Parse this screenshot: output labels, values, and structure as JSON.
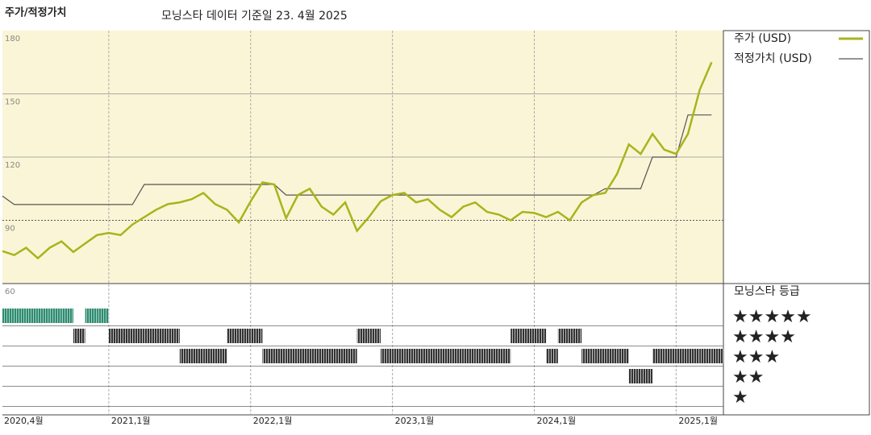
{
  "chart_data": [
    {
      "type": "line",
      "title": "주가/적정가치",
      "subtitle": "모닝스타 데이터 기준일 23. 4월 2025",
      "x": [
        "2020-04",
        "2020-05",
        "2020-06",
        "2020-07",
        "2020-08",
        "2020-09",
        "2020-10",
        "2020-11",
        "2020-12",
        "2021-01",
        "2021-02",
        "2021-03",
        "2021-04",
        "2021-05",
        "2021-06",
        "2021-07",
        "2021-08",
        "2021-09",
        "2021-10",
        "2021-11",
        "2021-12",
        "2022-01",
        "2022-02",
        "2022-03",
        "2022-04",
        "2022-05",
        "2022-06",
        "2022-07",
        "2022-08",
        "2022-09",
        "2022-10",
        "2022-11",
        "2022-12",
        "2023-01",
        "2023-02",
        "2023-03",
        "2023-04",
        "2023-05",
        "2023-06",
        "2023-07",
        "2023-08",
        "2023-09",
        "2023-10",
        "2023-11",
        "2023-12",
        "2024-01",
        "2024-02",
        "2024-03",
        "2024-04",
        "2024-05",
        "2024-06",
        "2024-07",
        "2024-08",
        "2024-09",
        "2024-10",
        "2024-11",
        "2024-12",
        "2025-01",
        "2025-02",
        "2025-03",
        "2025-04"
      ],
      "series": [
        {
          "name": "주가 (USD)",
          "color": "#a8b41c",
          "values": [
            75.4,
            73.5,
            77,
            72,
            77,
            80,
            75,
            79,
            83,
            84,
            83,
            88,
            91.5,
            95,
            97.7,
            98.5,
            100,
            103,
            97.7,
            95,
            89,
            99,
            108,
            107,
            91,
            102,
            105,
            96.5,
            92.7,
            98.5,
            85,
            91.5,
            99,
            102,
            103,
            98.5,
            100,
            95,
            91.5,
            96.5,
            98.5,
            94,
            92.7,
            90,
            94,
            93.5,
            91.5,
            94,
            90,
            98.5,
            102,
            103,
            112,
            126,
            121.5,
            131,
            123.5,
            121.5,
            131,
            152,
            165
          ]
        },
        {
          "name": "적정가치 (USD)",
          "color": "#555555",
          "values": [
            101.5,
            97.5,
            97.5,
            97.5,
            97.5,
            97.5,
            97.5,
            97.5,
            97.5,
            97.5,
            97.5,
            97.5,
            107,
            107,
            107,
            107,
            107,
            107,
            107,
            107,
            107,
            107,
            107,
            107,
            102,
            102,
            102,
            102,
            102,
            102,
            102,
            102,
            102,
            102,
            102,
            102,
            102,
            102,
            102,
            102,
            102,
            102,
            102,
            102,
            102,
            102,
            102,
            102,
            102,
            102,
            102,
            105,
            105,
            105,
            105,
            120,
            120,
            120,
            140,
            140,
            140
          ]
        }
      ],
      "xlim": [
        "2020-04",
        "2025-05"
      ],
      "xticks": [
        {
          "value": "2020-04",
          "label": "2020,4월"
        },
        {
          "value": "2021-01",
          "label": "2021,1월"
        },
        {
          "value": "2022-01",
          "label": "2022,1월"
        },
        {
          "value": "2023-01",
          "label": "2023,1월"
        },
        {
          "value": "2024-01",
          "label": "2024,1월"
        },
        {
          "value": "2025-01",
          "label": "2025,1월"
        }
      ],
      "ylim": [
        60,
        180
      ],
      "yticks": [
        60,
        90,
        120,
        150,
        180
      ],
      "grid": true,
      "background": "#faf5d6"
    },
    {
      "type": "rating",
      "title": "모닝스타 등급",
      "x": [
        "2020-04",
        "2020-05",
        "2020-06",
        "2020-07",
        "2020-08",
        "2020-09",
        "2020-10",
        "2020-11",
        "2020-12",
        "2021-01",
        "2021-02",
        "2021-03",
        "2021-04",
        "2021-05",
        "2021-06",
        "2021-07",
        "2021-08",
        "2021-09",
        "2021-10",
        "2021-11",
        "2021-12",
        "2022-01",
        "2022-02",
        "2022-03",
        "2022-04",
        "2022-05",
        "2022-06",
        "2022-07",
        "2022-08",
        "2022-09",
        "2022-10",
        "2022-11",
        "2022-12",
        "2023-01",
        "2023-02",
        "2023-03",
        "2023-04",
        "2023-05",
        "2023-06",
        "2023-07",
        "2023-08",
        "2023-09",
        "2023-10",
        "2023-11",
        "2023-12",
        "2024-01",
        "2024-02",
        "2024-03",
        "2024-04",
        "2024-05",
        "2024-06",
        "2024-07",
        "2024-08",
        "2024-09",
        "2024-10",
        "2024-11",
        "2024-12",
        "2025-01",
        "2025-02",
        "2025-03",
        "2025-04"
      ],
      "values": [
        5,
        5,
        5,
        5,
        5,
        5,
        4,
        5,
        5,
        4,
        4,
        4,
        4,
        4,
        4,
        3,
        3,
        3,
        3,
        4,
        4,
        4,
        3,
        3,
        3,
        3,
        3,
        3,
        3,
        3,
        4,
        4,
        3,
        3,
        3,
        3,
        3,
        3,
        3,
        3,
        3,
        3,
        3,
        4,
        4,
        4,
        3,
        4,
        4,
        3,
        3,
        3,
        3,
        2,
        2,
        3,
        3,
        3,
        3,
        3,
        3
      ],
      "ylim": [
        0.5,
        5.5
      ],
      "yticks": [
        {
          "value": 5,
          "label": "★★★★★"
        },
        {
          "value": 4,
          "label": "★★★★"
        },
        {
          "value": 3,
          "label": "★★★"
        },
        {
          "value": 2,
          "label": "★★"
        },
        {
          "value": 1,
          "label": "★"
        }
      ],
      "colors": [
        "#3a3a3a",
        "#3a3a3a",
        "#3a3a3a",
        "#3a3a3a",
        "#2f8a70"
      ]
    }
  ]
}
